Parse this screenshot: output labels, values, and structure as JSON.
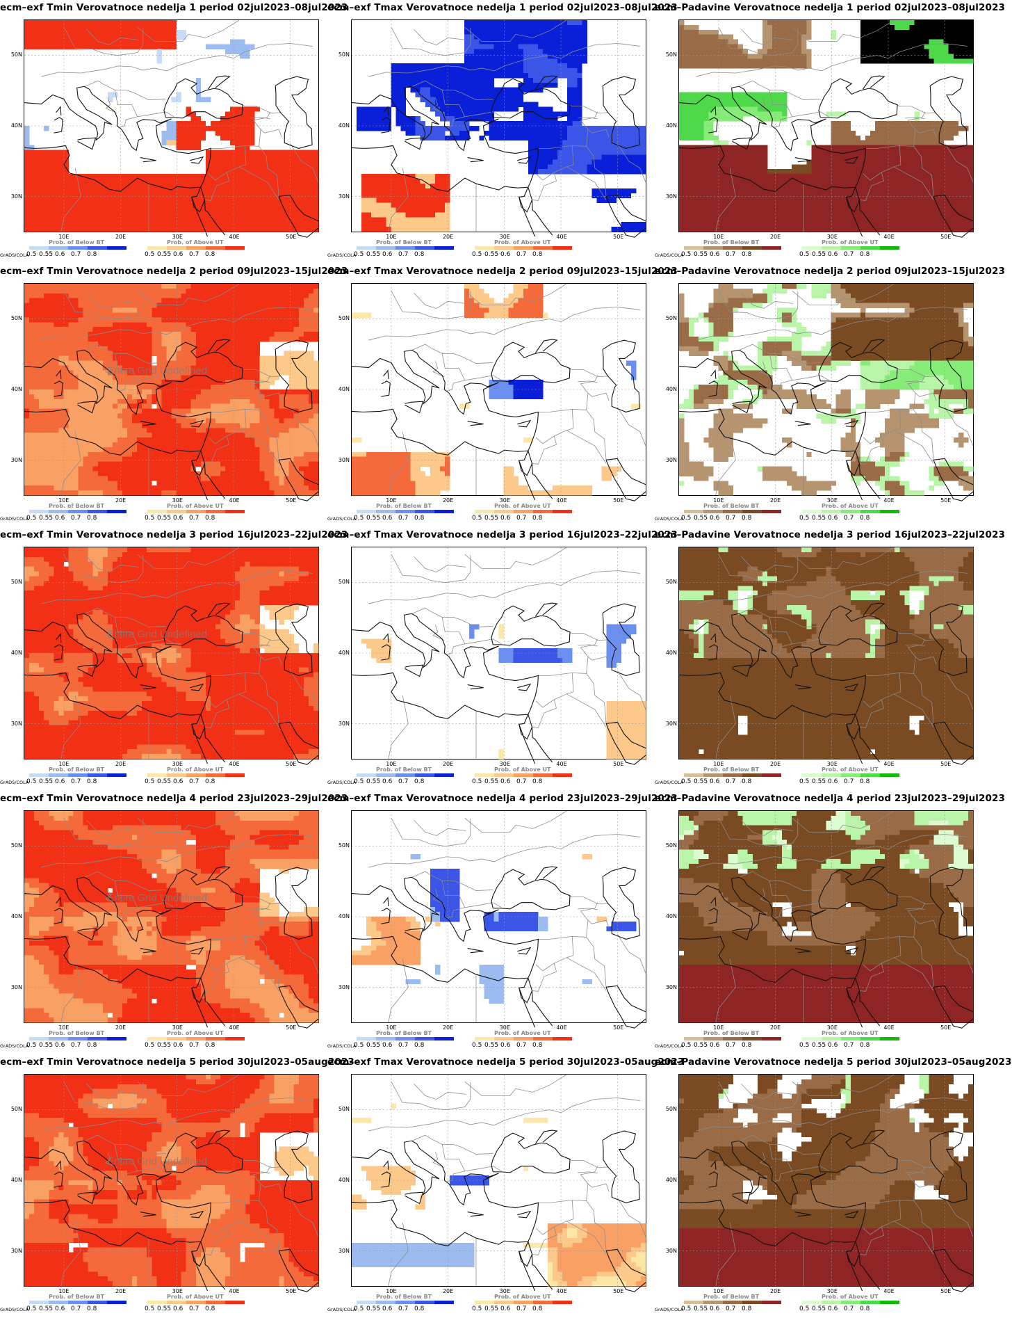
{
  "lat_labels": [
    "50N",
    "40N",
    "30N"
  ],
  "lon_labels": [
    "10E",
    "20E",
    "30E",
    "40E",
    "50E"
  ],
  "colorbar_ticks": [
    "0.5",
    "0.55",
    "0.6",
    "0.7",
    "0.8"
  ],
  "grads_credit": "GrADS/COLA",
  "legend_below": "Prob. of Below BT",
  "legend_above": "Prob. of Above UT",
  "watermark": "Entire Grid Undefined",
  "palettes": {
    "temp_below": [
      "#c6dbf5",
      "#9cbcf0",
      "#6b8ff0",
      "#3a55e8",
      "#0a1fd8"
    ],
    "temp_above": [
      "#fde7a6",
      "#fcc98a",
      "#f9a064",
      "#f56a3a",
      "#f23015"
    ],
    "prec_below": [
      "#d8be97",
      "#b79470",
      "#9a6b47",
      "#7a4a22",
      "#8f2424"
    ],
    "prec_above": [
      "#dcfbd0",
      "#b8f5a8",
      "#86ec78",
      "#4dd94a",
      "#12b80a"
    ]
  },
  "panels": [
    {
      "title": "ecm–exf Tmin Verovatnoce nedelja 1 period 02jul2023–08jul2023",
      "type": "tmin",
      "week": 1
    },
    {
      "title": "ecm–exf Tmax Verovatnoce nedelja 1 period 02jul2023–08jul2023",
      "type": "tmax",
      "week": 1
    },
    {
      "title": "ecm–Padavine Verovatnoce nedelja 1 period 02jul2023–08jul2023",
      "type": "prec",
      "week": 1
    },
    {
      "title": "ecm–exf Tmin Verovatnoce nedelja 2 period 09jul2023–15jul2023",
      "type": "tmin",
      "week": 2,
      "watermark": true
    },
    {
      "title": "ecm–exf Tmax Verovatnoce nedelja 2 period 09jul2023–15jul2023",
      "type": "tmax",
      "week": 2
    },
    {
      "title": "ecm–Padavine Verovatnoce nedelja 2 period 09jul2023–15jul2023",
      "type": "prec",
      "week": 2
    },
    {
      "title": "ecm–exf Tmin Verovatnoce nedelja 3 period 16jul2023–22jul2023",
      "type": "tmin",
      "week": 3,
      "watermark": true
    },
    {
      "title": "ecm–exf Tmax Verovatnoce nedelja 3 period 16jul2023–22jul2023",
      "type": "tmax",
      "week": 3
    },
    {
      "title": "ecm–Padavine Verovatnoce nedelja 3 period 16jul2023–22jul2023",
      "type": "prec",
      "week": 3
    },
    {
      "title": "ecm–exf Tmin Verovatnoce nedelja 4 period 23jul2023–29jul2023",
      "type": "tmin",
      "week": 4,
      "watermark": true
    },
    {
      "title": "ecm–exf Tmax Verovatnoce nedelja 4 period 23jul2023–29jul2023",
      "type": "tmax",
      "week": 4
    },
    {
      "title": "ecm–Padavine Verovatnoce nedelja 4 period 23jul2023–29jul2023",
      "type": "prec",
      "week": 4
    },
    {
      "title": "ecm–exf Tmin Verovatnoce nedelja 5 period 30jul2023–05aug2023",
      "type": "tmin",
      "week": 5,
      "watermark": true
    },
    {
      "title": "ecm–exf Tmax Verovatnoce nedelja 5 period 30jul2023–05aug2023",
      "type": "tmax",
      "week": 5
    },
    {
      "title": "ecm–Padavine Verovatnoce nedelja 5 period 30jul2023–05aug2023",
      "type": "prec",
      "week": 5
    }
  ]
}
